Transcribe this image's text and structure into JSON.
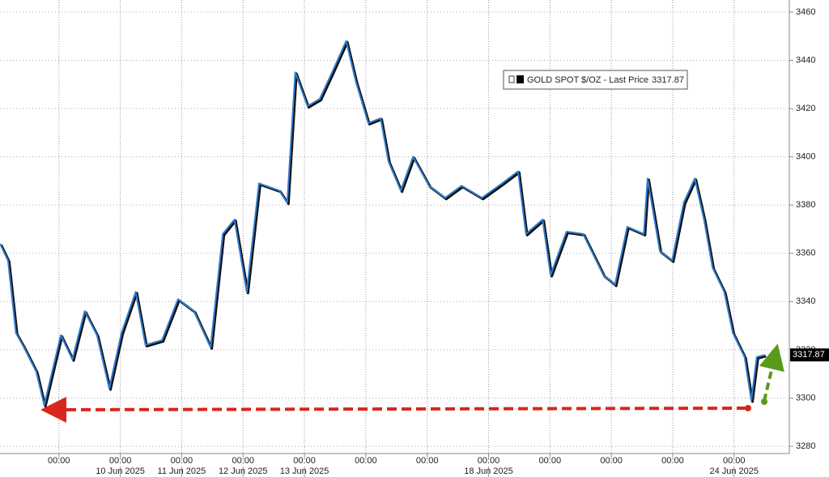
{
  "chart_data": {
    "type": "line",
    "series": [
      {
        "name": "GOLD SPOT $/OZ - Last Price",
        "color": "#2f7bd0",
        "x": [
          -0.96,
          -0.83,
          -0.7,
          -0.57,
          -0.37,
          -0.24,
          0.03,
          0.22,
          0.42,
          0.62,
          0.82,
          1.02,
          1.25,
          1.41,
          1.68,
          1.94,
          2.2,
          2.47,
          2.67,
          2.86,
          3.06,
          3.26,
          3.59,
          3.72,
          3.85,
          4.05,
          4.25,
          4.45,
          4.68,
          4.84,
          5.04,
          5.24,
          5.37,
          5.57,
          5.77,
          6.03,
          6.29,
          6.56,
          6.89,
          7.22,
          7.48,
          7.61,
          7.88,
          8.01,
          8.27,
          8.54,
          8.87,
          9.06,
          9.26,
          9.53,
          9.59,
          9.79,
          9.99,
          10.18,
          10.36,
          10.51,
          10.65,
          10.84,
          10.98,
          11.17,
          11.28,
          11.37,
          11.5
        ],
        "values": [
          3364,
          3357,
          3327,
          3321,
          3311,
          3297,
          3326,
          3316,
          3336,
          3326,
          3304,
          3327,
          3344,
          3322,
          3324,
          3341,
          3336,
          3321,
          3368,
          3374,
          3344,
          3389,
          3386,
          3381,
          3435,
          3421,
          3424,
          3435,
          3448,
          3431,
          3414,
          3416,
          3398,
          3386,
          3400,
          3388,
          3383,
          3388,
          3383,
          3389,
          3394,
          3368,
          3374,
          3351,
          3369,
          3368,
          3351,
          3347,
          3371,
          3368,
          3391,
          3361,
          3357,
          3381,
          3391,
          3374,
          3354,
          3344,
          3327,
          3317,
          3299,
          3317,
          3317.87
        ]
      }
    ],
    "last_price": 3317.87,
    "xlim": [
      -0.96,
      11.9
    ],
    "xticks": [
      {
        "value": 0,
        "label": "00:00"
      },
      {
        "value": 1,
        "label": "00:00"
      },
      {
        "value": 2,
        "label": "00:00"
      },
      {
        "value": 3,
        "label": "00:00"
      },
      {
        "value": 4,
        "label": "00:00"
      },
      {
        "value": 5,
        "label": "00:00"
      },
      {
        "value": 6,
        "label": "00:00"
      },
      {
        "value": 7,
        "label": "00:00"
      },
      {
        "value": 8,
        "label": "00:00"
      },
      {
        "value": 9,
        "label": "00:00"
      },
      {
        "value": 10,
        "label": "00:00"
      },
      {
        "value": 11,
        "label": "00:00"
      }
    ],
    "xdate_labels": [
      {
        "value": 1,
        "label": "10 Jun 2025"
      },
      {
        "value": 2,
        "label": "11 Jun 2025"
      },
      {
        "value": 3,
        "label": "12 Jun 2025"
      },
      {
        "value": 4,
        "label": "13 Jun 2025"
      },
      {
        "value": 7,
        "label": "18 Jun 2025"
      },
      {
        "value": 11,
        "label": "24 Jun 2025"
      }
    ],
    "ylim": [
      3277,
      3465
    ],
    "yticks": [
      3280,
      3300,
      3320,
      3340,
      3360,
      3380,
      3400,
      3420,
      3440,
      3460
    ],
    "grid": true
  }
}
